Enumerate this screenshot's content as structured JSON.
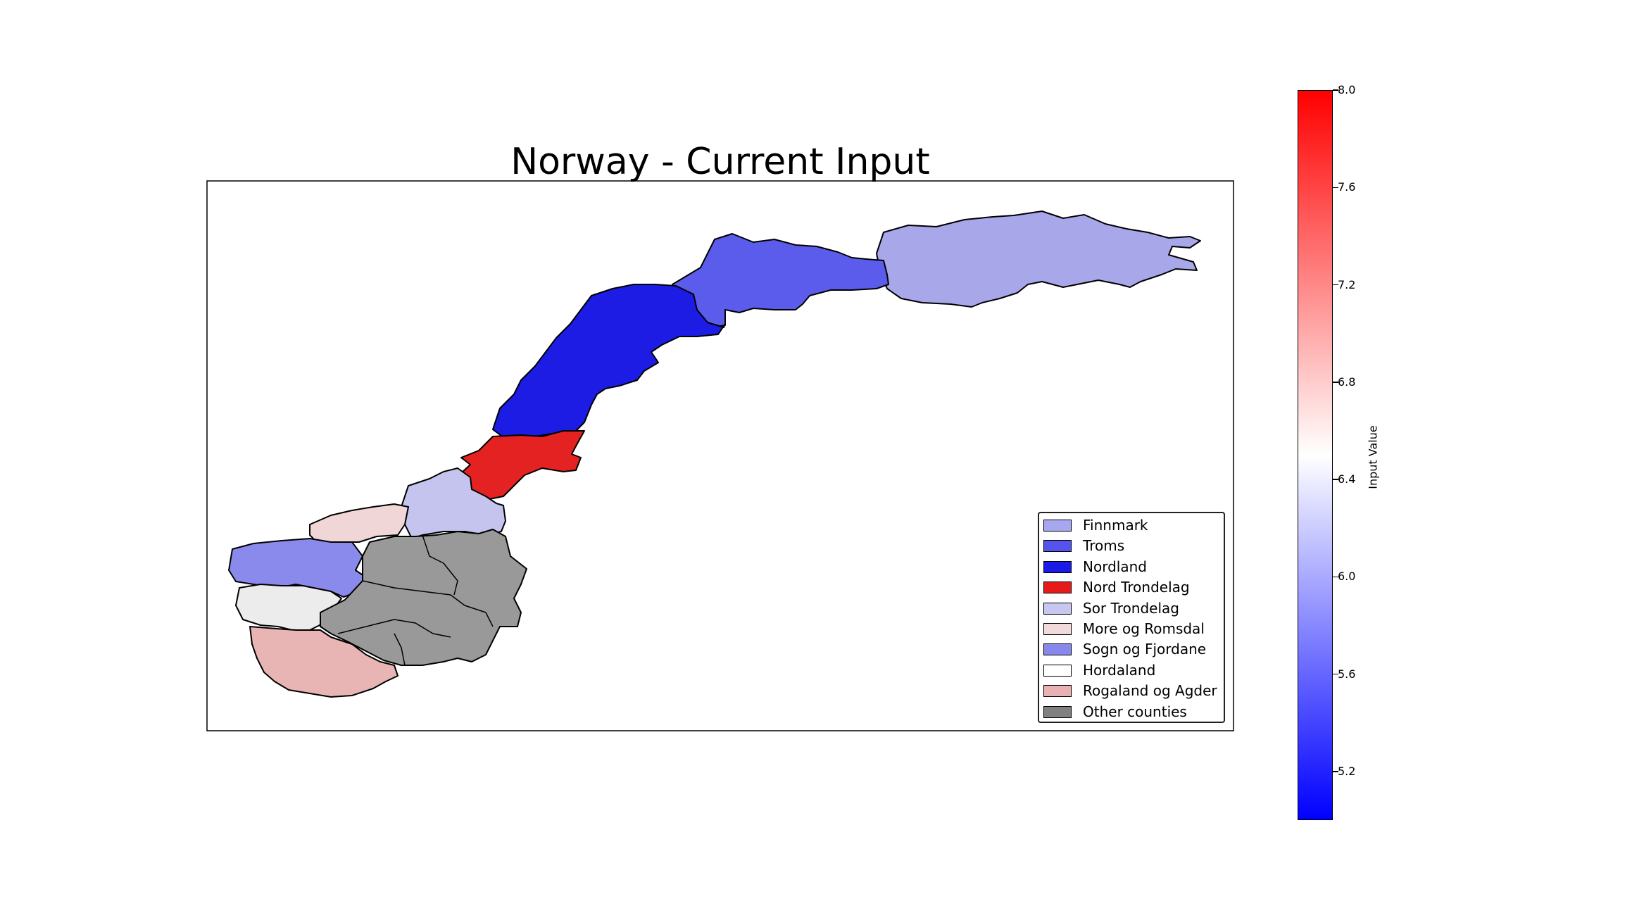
{
  "title": "Norway - Current Input",
  "legend": {
    "placement": "lower-right",
    "items": [
      {
        "label": "Finnmark",
        "color": "#a7a7f0"
      },
      {
        "label": "Troms",
        "color": "#5454ec"
      },
      {
        "label": "Nordland",
        "color": "#1a1ae6"
      },
      {
        "label": "Nord Trondelag",
        "color": "#e61a1a"
      },
      {
        "label": "Sor Trondelag",
        "color": "#c7c7f2"
      },
      {
        "label": "More og Romsdal",
        "color": "#f3dada"
      },
      {
        "label": "Sogn og Fjordane",
        "color": "#8888ec"
      },
      {
        "label": "Hordaland",
        "color": "#ffffff"
      },
      {
        "label": "Rogaland og Agder",
        "color": "#e9b1b1"
      },
      {
        "label": "Other counties",
        "color": "#808080"
      }
    ]
  },
  "colorbar": {
    "label": "Input Value",
    "min": 5.0,
    "max": 8.0,
    "ticks": [
      "5.2",
      "5.6",
      "6.0",
      "6.4",
      "6.8",
      "7.2",
      "7.6",
      "8.0"
    ],
    "colors": {
      "low": "#0000ff",
      "mid": "#ffffff",
      "high": "#ff0000"
    }
  },
  "regions": [
    {
      "name": "Finnmark",
      "color": "#a7a7ea"
    },
    {
      "name": "Troms",
      "color": "#5c5cec"
    },
    {
      "name": "Nordland",
      "color": "#1c1ce4"
    },
    {
      "name": "Nord Trondelag",
      "color": "#e52222"
    },
    {
      "name": "Sor Trondelag",
      "color": "#c4c4ee"
    },
    {
      "name": "More og Romsdal",
      "color": "#f0d6d6"
    },
    {
      "name": "Sogn og Fjordane",
      "color": "#8a8aec"
    },
    {
      "name": "Hordaland",
      "color": "#ececec"
    },
    {
      "name": "Rogaland og Agder",
      "color": "#e8b4b4"
    },
    {
      "name": "Other counties",
      "color": "#999999"
    }
  ]
}
